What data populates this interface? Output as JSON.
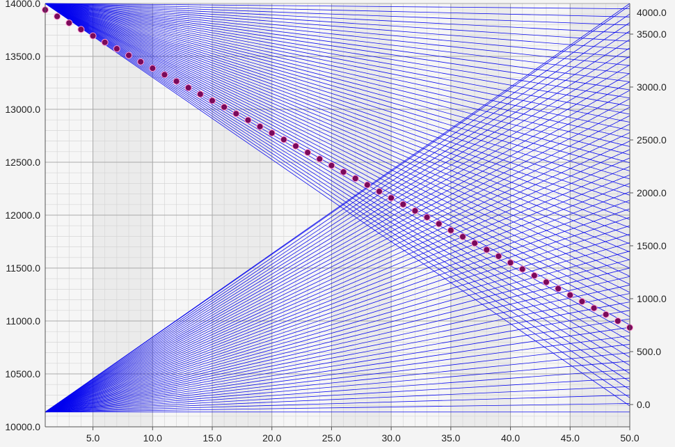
{
  "chart_data": {
    "type": "line",
    "title": "",
    "xlabel": "",
    "ylabel": "",
    "y2label": "",
    "xlim": [
      1,
      50
    ],
    "ylim": [
      10000,
      14000
    ],
    "y2lim": [
      0,
      4000
    ],
    "grid": true,
    "x_ticks": [
      "5.0",
      "10.0",
      "15.0",
      "20.0",
      "25.0",
      "30.0",
      "35.0",
      "40.0",
      "45.0",
      "50.0"
    ],
    "y_ticks": [
      "10000.0",
      "10500.0",
      "11000.0",
      "11500.0",
      "12000.0",
      "12500.0",
      "13000.0",
      "13500.0",
      "14000.0"
    ],
    "y2_ticks": [
      "0.0",
      "500.0",
      "1000.0",
      "1500.0",
      "2000.0",
      "2500.0",
      "3000.0",
      "3500.0",
      "4000.0"
    ],
    "colors": {
      "lines": "#0000ee",
      "points": "#7a0a5a",
      "point_edge": "#ff9ad5",
      "plot_band": "#ebebeb",
      "grid": "#c8c8c8"
    },
    "series": [
      {
        "kind": "points",
        "axis": "left",
        "x": [
          1,
          2,
          3,
          4,
          5,
          6,
          7,
          8,
          9,
          10,
          11,
          12,
          13,
          14,
          15,
          16,
          17,
          18,
          19,
          20,
          21,
          22,
          23,
          24,
          25,
          26,
          27,
          28,
          29,
          30,
          31,
          32,
          33,
          34,
          35,
          36,
          37,
          38,
          39,
          40,
          41,
          42,
          43,
          44,
          45,
          46,
          47,
          48,
          49,
          50
        ],
        "y": [
          13940,
          13878,
          13816,
          13755,
          13694,
          13633,
          13572,
          13510,
          13449,
          13388,
          13327,
          13265,
          13204,
          13143,
          13082,
          13021,
          12959,
          12898,
          12837,
          12776,
          12714,
          12653,
          12592,
          12531,
          12469,
          12408,
          12347,
          12286,
          12224,
          12163,
          12102,
          12041,
          11980,
          11918,
          11857,
          11796,
          11735,
          11673,
          11612,
          11551,
          11490,
          11429,
          11367,
          11306,
          11245,
          11184,
          11122,
          11061,
          11000,
          10938
        ]
      },
      {
        "kind": "line-family",
        "axis": "left",
        "description_of_family": "descending from about 14000 at x=1",
        "count": 50,
        "start": {
          "x": 1,
          "y": 14000
        },
        "end_x": 50,
        "end_y_values": [
          13950,
          13873,
          13796,
          13720,
          13643,
          13567,
          13490,
          13414,
          13337,
          13260,
          13184,
          13107,
          13031,
          12954,
          12878,
          12801,
          12724,
          12648,
          12571,
          12495,
          12418,
          12342,
          12265,
          12188,
          12112,
          12035,
          11959,
          11882,
          11806,
          11729,
          11652,
          11576,
          11499,
          11423,
          11346,
          11270,
          11193,
          11116,
          11040,
          10963,
          10887,
          10810,
          10734,
          10657,
          10580,
          10504,
          10427,
          10351,
          10274,
          10198
        ]
      },
      {
        "kind": "line-family",
        "axis": "left",
        "count": 50,
        "start": {
          "x": 1,
          "y": 10140
        },
        "end_x": 50,
        "end_y_values": [
          10140,
          10220,
          10300,
          10380,
          10460,
          10540,
          10620,
          10700,
          10780,
          10860,
          10940,
          11020,
          11100,
          11180,
          11260,
          11340,
          11420,
          11500,
          11580,
          11660,
          11740,
          11820,
          11900,
          11980,
          12060,
          12140,
          12220,
          12300,
          12380,
          12460,
          12540,
          12620,
          12700,
          12780,
          12860,
          12940,
          13020,
          13100,
          13180,
          13260,
          13340,
          13420,
          13500,
          13580,
          13660,
          13740,
          13820,
          13900,
          13980,
          14000
        ]
      }
    ]
  }
}
